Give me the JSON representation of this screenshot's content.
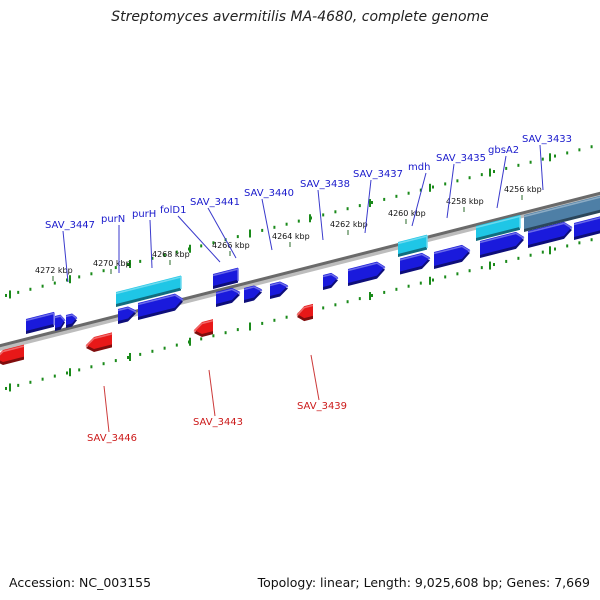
{
  "title": "Streptomyces avermitilis MA-4680, complete genome",
  "footer": {
    "accession": "Accession: NC_003155",
    "summary": "Topology: linear; Length: 9,025,608 bp; Genes: 7,669"
  },
  "colors": {
    "forward_gene": "#1a1adc",
    "reverse_gene": "#e81818",
    "rna_gene": "#1fc6e6",
    "ruler": "#1a8a1a",
    "forward_label": "#1a1acc",
    "reverse_label": "#cc1a1a"
  },
  "ruler_labels": [
    "4256 kbp",
    "4258 kbp",
    "4260 kbp",
    "4262 kbp",
    "4264 kbp",
    "4266 kbp",
    "4268 kbp",
    "4270 kbp",
    "4272 kbp"
  ],
  "forward_labels": [
    "SAV_3433",
    "gbsA2",
    "SAV_3435",
    "mdh",
    "SAV_3437",
    "SAV_3438",
    "SAV_3440",
    "SAV_3441",
    "folD1",
    "purH",
    "purN",
    "SAV_3447"
  ],
  "reverse_labels": [
    "SAV_3439",
    "SAV_3443",
    "SAV_3446"
  ]
}
